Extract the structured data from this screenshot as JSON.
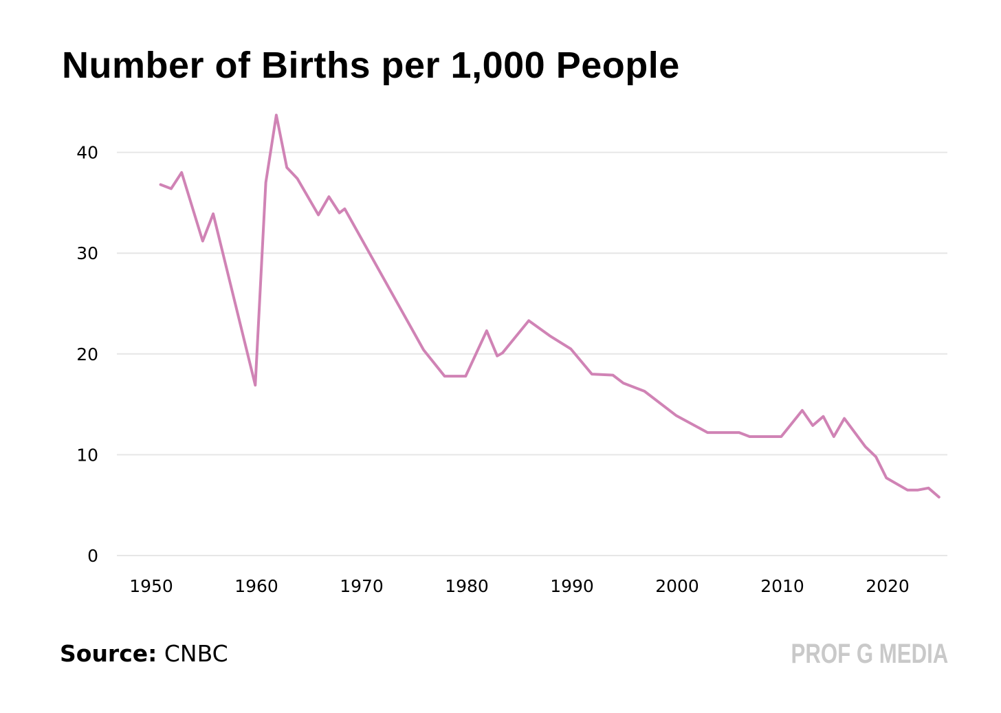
{
  "title": "Number of Births per 1,000 People",
  "source": {
    "label": "Source:",
    "value": "CNBC"
  },
  "brand": "PROF G MEDIA",
  "colors": {
    "line": "#d083b5",
    "grid": "#e6e6e6",
    "brand": "#c9c9c9"
  },
  "chart_data": {
    "type": "line",
    "title": "Number of Births per 1,000 People",
    "xlabel": "",
    "ylabel": "",
    "xlim": [
      1947,
      2026
    ],
    "ylim": [
      0,
      44
    ],
    "xticks": [
      1950,
      1960,
      1970,
      1980,
      1990,
      2000,
      2010,
      2020
    ],
    "yticks": [
      0,
      10,
      20,
      30,
      40
    ],
    "grid": true,
    "series": [
      {
        "x": [
          1952,
          1953,
          1954,
          1956,
          1957,
          1961,
          1962,
          1963,
          1964,
          1965,
          1967,
          1968,
          1969,
          1969.5,
          1977,
          1979,
          1981,
          1983,
          1984,
          1984.5,
          1987,
          1989,
          1991,
          1993,
          1995,
          1996,
          1998,
          2001,
          2004,
          2007,
          2008,
          2011,
          2013,
          2014,
          2015,
          2016,
          2017,
          2019,
          2020,
          2021,
          2023,
          2024,
          2025,
          2026
        ],
        "y": [
          36.8,
          36.4,
          38.0,
          31.2,
          33.9,
          16.9,
          37.0,
          43.7,
          38.5,
          37.4,
          33.8,
          35.6,
          34.0,
          34.4,
          20.4,
          17.8,
          17.8,
          22.3,
          19.8,
          20.1,
          23.3,
          21.8,
          20.5,
          18.0,
          17.9,
          17.1,
          16.3,
          13.9,
          12.2,
          12.2,
          11.8,
          11.8,
          14.4,
          12.9,
          13.8,
          11.8,
          13.6,
          10.8,
          9.8,
          7.7,
          6.5,
          6.5,
          6.7,
          5.8
        ]
      }
    ]
  }
}
